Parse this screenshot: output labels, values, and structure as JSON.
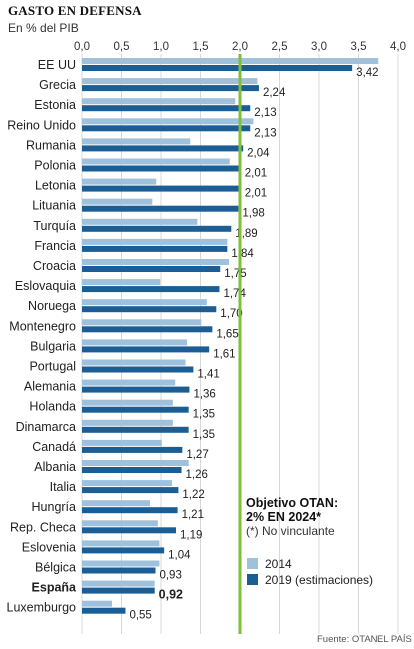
{
  "header": {
    "title": "GASTO EN DEFENSA",
    "subtitle": "En % del PIB"
  },
  "colors": {
    "series_2014": "#9fc1dc",
    "series_2019": "#1b5e96",
    "target_line": "#7cbf3a",
    "grid": "#d8d8d8"
  },
  "chart_data": {
    "type": "bar",
    "orientation": "horizontal",
    "xlim": [
      0,
      4.0
    ],
    "xticks": [
      "0,0",
      "0,5",
      "1,0",
      "1,5",
      "2,0",
      "2,5",
      "3,0",
      "3,5",
      "4,0"
    ],
    "xtick_values": [
      0,
      0.5,
      1.0,
      1.5,
      2.0,
      2.5,
      3.0,
      3.5,
      4.0
    ],
    "grid": true,
    "categories": [
      "EE UU",
      "Grecia",
      "Estonia",
      "Reino Unido",
      "Rumania",
      "Polonia",
      "Letonia",
      "Lituania",
      "Turquía",
      "Francia",
      "Croacia",
      "Eslovaquia",
      "Noruega",
      "Montenegro",
      "Bulgaria",
      "Portugal",
      "Alemania",
      "Holanda",
      "Dinamarca",
      "Canadá",
      "Albania",
      "Italia",
      "Hungría",
      "Rep. Checa",
      "Eslovenia",
      "Bélgica",
      "España",
      "Luxemburgo"
    ],
    "highlight_category": "España",
    "series": [
      {
        "name": "2014",
        "values": [
          3.75,
          2.22,
          1.94,
          2.17,
          1.37,
          1.87,
          0.94,
          0.89,
          1.46,
          1.84,
          1.86,
          0.99,
          1.58,
          1.51,
          1.33,
          1.31,
          1.18,
          1.15,
          1.15,
          1.01,
          1.35,
          1.14,
          0.86,
          0.96,
          0.98,
          0.98,
          0.92,
          0.38
        ]
      },
      {
        "name": "2019 (estimaciones)",
        "values": [
          3.42,
          2.24,
          2.13,
          2.13,
          2.04,
          2.01,
          2.01,
          1.98,
          1.89,
          1.84,
          1.75,
          1.74,
          1.7,
          1.65,
          1.61,
          1.41,
          1.36,
          1.35,
          1.35,
          1.27,
          1.26,
          1.22,
          1.21,
          1.19,
          1.04,
          0.93,
          0.92,
          0.55
        ]
      }
    ],
    "value_labels": [
      "3,42",
      "2,24",
      "2,13",
      "2,13",
      "2,04",
      "2,01",
      "2,01",
      "1,98",
      "1,89",
      "1,84",
      "1,75",
      "1,74",
      "1,70",
      "1,65",
      "1,61",
      "1,41",
      "1,36",
      "1,35",
      "1,35",
      "1,27",
      "1,26",
      "1,22",
      "1,21",
      "1,19",
      "1,04",
      "0,93",
      "0,92",
      "0,55"
    ],
    "reference_line": {
      "value": 2.0,
      "label_line1": "Objetivo OTAN:",
      "label_line2": "2% EN 2024*",
      "note": "(*) No vinculante"
    },
    "legend": [
      "2014",
      "2019 (estimaciones)"
    ],
    "legend_placement": "bottom-right"
  },
  "footer": {
    "source": "Fuente: OTAN.",
    "brand": "EL PAÍS"
  }
}
